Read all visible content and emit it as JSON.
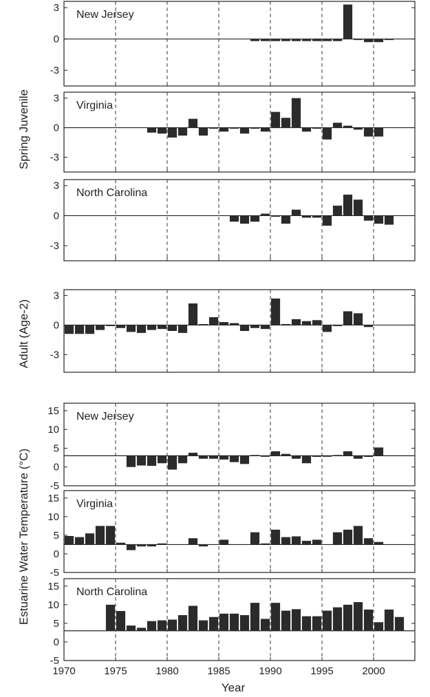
{
  "chart_data": {
    "type": "bar",
    "x_title": "Year",
    "x_ticks": [
      "1970",
      "1975",
      "1980",
      "1985",
      "1990",
      "1995",
      "2000"
    ],
    "x_range": [
      1970,
      2004
    ],
    "group_labels": [
      {
        "id": "juv",
        "text": "Spring Juvenile"
      },
      {
        "id": "adult",
        "text": "Adult (Age-2)"
      },
      {
        "id": "temp",
        "text": "Estuarine Water Temperature (°C)"
      }
    ],
    "panels": [
      {
        "id": "juv-nj",
        "group": "juv",
        "title": "New Jersey",
        "ylim": [
          -4.5,
          3.6
        ],
        "yticks": [
          "3",
          "0",
          "-3"
        ],
        "baseline": 0,
        "values": [
          [
            1988,
            -0.2
          ],
          [
            1989,
            -0.2
          ],
          [
            1990,
            -0.2
          ],
          [
            1991,
            -0.2
          ],
          [
            1992,
            -0.2
          ],
          [
            1993,
            -0.2
          ],
          [
            1994,
            -0.2
          ],
          [
            1995,
            -0.2
          ],
          [
            1996,
            -0.2
          ],
          [
            1997,
            3.3
          ],
          [
            1998,
            0.0
          ],
          [
            1999,
            -0.3
          ],
          [
            2000,
            -0.3
          ],
          [
            2001,
            -0.1
          ]
        ]
      },
      {
        "id": "juv-va",
        "group": "juv",
        "title": "Virginia",
        "ylim": [
          -4.5,
          3.6
        ],
        "yticks": [
          "3",
          "0",
          "-3"
        ],
        "baseline": 0,
        "values": [
          [
            1978,
            -0.5
          ],
          [
            1979,
            -0.6
          ],
          [
            1980,
            -1.0
          ],
          [
            1981,
            -0.8
          ],
          [
            1982,
            0.9
          ],
          [
            1983,
            -0.8
          ],
          [
            1984,
            -0.1
          ],
          [
            1985,
            -0.4
          ],
          [
            1986,
            0.0
          ],
          [
            1987,
            -0.6
          ],
          [
            1988,
            0.0
          ],
          [
            1989,
            -0.4
          ],
          [
            1990,
            1.6
          ],
          [
            1991,
            1.0
          ],
          [
            1992,
            3.0
          ],
          [
            1993,
            -0.4
          ],
          [
            1994,
            -0.1
          ],
          [
            1995,
            -1.2
          ],
          [
            1996,
            0.5
          ],
          [
            1997,
            0.2
          ],
          [
            1998,
            -0.2
          ],
          [
            1999,
            -0.9
          ],
          [
            2000,
            -0.9
          ]
        ]
      },
      {
        "id": "juv-nc",
        "group": "juv",
        "title": "North Carolina",
        "ylim": [
          -4.5,
          3.6
        ],
        "yticks": [
          "3",
          "0",
          "-3"
        ],
        "baseline": 0,
        "values": [
          [
            1986,
            -0.6
          ],
          [
            1987,
            -0.8
          ],
          [
            1988,
            -0.6
          ],
          [
            1989,
            0.2
          ],
          [
            1990,
            -0.1
          ],
          [
            1991,
            -0.8
          ],
          [
            1992,
            0.6
          ],
          [
            1993,
            -0.2
          ],
          [
            1994,
            -0.2
          ],
          [
            1995,
            -1.0
          ],
          [
            1996,
            1.0
          ],
          [
            1997,
            2.1
          ],
          [
            1998,
            1.6
          ],
          [
            1999,
            -0.5
          ],
          [
            2000,
            -0.8
          ],
          [
            2001,
            -0.9
          ]
        ]
      },
      {
        "id": "adult",
        "group": "adult",
        "title": "",
        "ylim": [
          -4.8,
          3.6
        ],
        "yticks": [
          "3",
          "0",
          "-3"
        ],
        "baseline": 0,
        "values": [
          [
            1970,
            -0.9
          ],
          [
            1971,
            -0.9
          ],
          [
            1972,
            -0.9
          ],
          [
            1973,
            -0.5
          ],
          [
            1974,
            -0.1
          ],
          [
            1975,
            -0.3
          ],
          [
            1976,
            -0.7
          ],
          [
            1977,
            -0.8
          ],
          [
            1978,
            -0.5
          ],
          [
            1979,
            -0.4
          ],
          [
            1980,
            -0.6
          ],
          [
            1981,
            -0.8
          ],
          [
            1982,
            2.2
          ],
          [
            1983,
            0.1
          ],
          [
            1984,
            0.8
          ],
          [
            1985,
            0.3
          ],
          [
            1986,
            0.2
          ],
          [
            1987,
            -0.6
          ],
          [
            1988,
            -0.3
          ],
          [
            1989,
            -0.4
          ],
          [
            1990,
            2.7
          ],
          [
            1991,
            0.1
          ],
          [
            1992,
            0.6
          ],
          [
            1993,
            0.4
          ],
          [
            1994,
            0.5
          ],
          [
            1995,
            -0.7
          ],
          [
            1996,
            0.0
          ],
          [
            1997,
            1.4
          ],
          [
            1998,
            1.2
          ],
          [
            1999,
            -0.2
          ]
        ]
      },
      {
        "id": "temp-nj",
        "group": "temp",
        "title": "New Jersey",
        "ylim": [
          -5,
          17
        ],
        "yticks": [
          "15",
          "10",
          "5",
          "0",
          "-5"
        ],
        "baseline": 3,
        "values": [
          [
            1976,
            0.0
          ],
          [
            1977,
            0.4
          ],
          [
            1978,
            0.3
          ],
          [
            1979,
            1.0
          ],
          [
            1980,
            -0.7
          ],
          [
            1981,
            1.0
          ],
          [
            1982,
            3.8
          ],
          [
            1983,
            2.2
          ],
          [
            1984,
            2.2
          ],
          [
            1985,
            2.0
          ],
          [
            1986,
            1.3
          ],
          [
            1987,
            0.8
          ],
          [
            1988,
            3.2
          ],
          [
            1989,
            2.8
          ],
          [
            1990,
            4.2
          ],
          [
            1991,
            3.5
          ],
          [
            1992,
            2.2
          ],
          [
            1993,
            1.0
          ],
          [
            1994,
            2.7
          ],
          [
            1995,
            3.0
          ],
          [
            1996,
            3.2
          ],
          [
            1997,
            4.2
          ],
          [
            1998,
            2.2
          ],
          [
            1999,
            2.7
          ],
          [
            2000,
            5.2
          ]
        ]
      },
      {
        "id": "temp-va",
        "group": "temp",
        "title": "Virginia",
        "ylim": [
          -5,
          17
        ],
        "yticks": [
          "15",
          "10",
          "5",
          "0",
          "-5"
        ],
        "baseline": 2.5,
        "values": [
          [
            1970,
            4.8
          ],
          [
            1971,
            4.5
          ],
          [
            1972,
            5.5
          ],
          [
            1973,
            7.5
          ],
          [
            1974,
            7.5
          ],
          [
            1975,
            3.0
          ],
          [
            1976,
            1.0
          ],
          [
            1977,
            2.0
          ],
          [
            1978,
            2.0
          ],
          [
            1979,
            2.8
          ],
          [
            1982,
            4.2
          ],
          [
            1983,
            2.0
          ],
          [
            1985,
            3.8
          ],
          [
            1988,
            5.8
          ],
          [
            1989,
            2.8
          ],
          [
            1990,
            6.5
          ],
          [
            1991,
            4.5
          ],
          [
            1992,
            4.7
          ],
          [
            1993,
            3.5
          ],
          [
            1994,
            3.8
          ],
          [
            1996,
            5.8
          ],
          [
            1997,
            6.5
          ],
          [
            1998,
            7.5
          ],
          [
            1999,
            4.2
          ],
          [
            2000,
            3.2
          ]
        ]
      },
      {
        "id": "temp-nc",
        "group": "temp",
        "title": "North Carolina",
        "ylim": [
          -5,
          17
        ],
        "yticks": [
          "15",
          "10",
          "5",
          "0",
          "-5"
        ],
        "baseline": 3,
        "values": [
          [
            1974,
            10.0
          ],
          [
            1975,
            8.3
          ],
          [
            1976,
            4.4
          ],
          [
            1977,
            3.8
          ],
          [
            1978,
            5.6
          ],
          [
            1979,
            5.8
          ],
          [
            1980,
            6.0
          ],
          [
            1981,
            7.2
          ],
          [
            1982,
            9.7
          ],
          [
            1983,
            5.8
          ],
          [
            1984,
            6.7
          ],
          [
            1985,
            7.6
          ],
          [
            1986,
            7.6
          ],
          [
            1987,
            7.2
          ],
          [
            1988,
            10.5
          ],
          [
            1989,
            6.2
          ],
          [
            1990,
            10.5
          ],
          [
            1991,
            8.4
          ],
          [
            1992,
            8.8
          ],
          [
            1993,
            6.9
          ],
          [
            1994,
            6.9
          ],
          [
            1995,
            8.4
          ],
          [
            1996,
            9.3
          ],
          [
            1997,
            10.0
          ],
          [
            1998,
            10.7
          ],
          [
            1999,
            8.7
          ],
          [
            2000,
            5.3
          ],
          [
            2001,
            8.7
          ],
          [
            2002,
            6.7
          ]
        ]
      }
    ]
  }
}
